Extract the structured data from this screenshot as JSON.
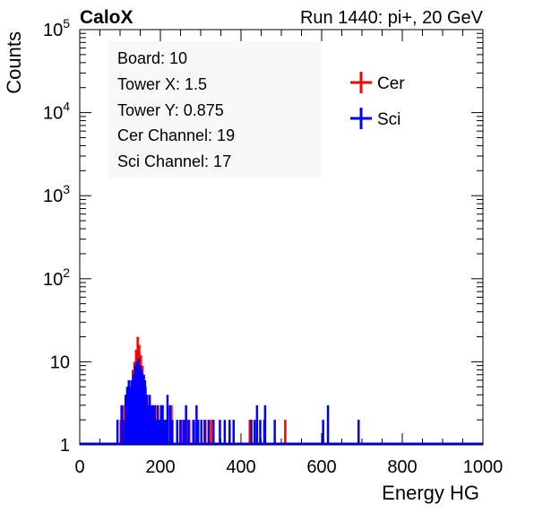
{
  "header": {
    "brand": "CaloX",
    "run_label": "Run 1440: pi+, 20 GeV"
  },
  "info_box": {
    "lines": [
      "Board: 10",
      "Tower X: 1.5",
      "Tower Y: 0.875",
      "Cer Channel: 19",
      "Sci Channel: 17"
    ]
  },
  "legend": {
    "entries": [
      {
        "name": "Cer",
        "color": "#ff0000"
      },
      {
        "name": "Sci",
        "color": "#0000ff"
      }
    ]
  },
  "chart_data": {
    "type": "histogram",
    "xlabel": "Energy HG",
    "ylabel": "Counts",
    "xlim": [
      0,
      1000
    ],
    "ylim": [
      1,
      100000
    ],
    "yscale": "log",
    "x_ticks": [
      "0",
      "200",
      "400",
      "600",
      "800",
      "1000"
    ],
    "y_ticks": [
      {
        "value": 1,
        "label": "1"
      },
      {
        "value": 10,
        "label": "10"
      },
      {
        "value": 100,
        "label": "10",
        "exp": "2"
      },
      {
        "value": 1000,
        "label": "10",
        "exp": "3"
      },
      {
        "value": 10000,
        "label": "10",
        "exp": "4"
      },
      {
        "value": 100000,
        "label": "10",
        "exp": "5"
      }
    ],
    "grid": false,
    "legend_position": "top-right",
    "bin_width": 2,
    "series": [
      {
        "name": "Cer",
        "color": "#ff0000",
        "bins": [
          {
            "x": 100,
            "y": 2
          },
          {
            "x": 106,
            "y": 3
          },
          {
            "x": 110,
            "y": 2
          },
          {
            "x": 114,
            "y": 4
          },
          {
            "x": 118,
            "y": 3
          },
          {
            "x": 122,
            "y": 5
          },
          {
            "x": 126,
            "y": 6
          },
          {
            "x": 130,
            "y": 8
          },
          {
            "x": 134,
            "y": 10
          },
          {
            "x": 138,
            "y": 14
          },
          {
            "x": 142,
            "y": 20
          },
          {
            "x": 146,
            "y": 16
          },
          {
            "x": 150,
            "y": 12
          },
          {
            "x": 154,
            "y": 9
          },
          {
            "x": 158,
            "y": 7
          },
          {
            "x": 162,
            "y": 5
          },
          {
            "x": 166,
            "y": 4
          },
          {
            "x": 170,
            "y": 3
          },
          {
            "x": 178,
            "y": 2
          },
          {
            "x": 186,
            "y": 3
          },
          {
            "x": 194,
            "y": 2
          },
          {
            "x": 200,
            "y": 3
          },
          {
            "x": 210,
            "y": 2
          },
          {
            "x": 226,
            "y": 3
          },
          {
            "x": 250,
            "y": 2
          },
          {
            "x": 258,
            "y": 2
          },
          {
            "x": 270,
            "y": 2
          },
          {
            "x": 282,
            "y": 2
          },
          {
            "x": 292,
            "y": 2
          },
          {
            "x": 300,
            "y": 2
          },
          {
            "x": 310,
            "y": 2
          },
          {
            "x": 324,
            "y": 2
          },
          {
            "x": 420,
            "y": 2
          },
          {
            "x": 508,
            "y": 2
          }
        ]
      },
      {
        "name": "Sci",
        "color": "#0000ff",
        "bins": [
          {
            "x": 92,
            "y": 2
          },
          {
            "x": 102,
            "y": 3
          },
          {
            "x": 106,
            "y": 2
          },
          {
            "x": 112,
            "y": 4
          },
          {
            "x": 116,
            "y": 5
          },
          {
            "x": 120,
            "y": 6
          },
          {
            "x": 124,
            "y": 5
          },
          {
            "x": 128,
            "y": 6
          },
          {
            "x": 132,
            "y": 7
          },
          {
            "x": 136,
            "y": 9
          },
          {
            "x": 140,
            "y": 10
          },
          {
            "x": 144,
            "y": 11
          },
          {
            "x": 148,
            "y": 9
          },
          {
            "x": 152,
            "y": 8
          },
          {
            "x": 156,
            "y": 7
          },
          {
            "x": 160,
            "y": 6
          },
          {
            "x": 164,
            "y": 4
          },
          {
            "x": 168,
            "y": 3
          },
          {
            "x": 172,
            "y": 4
          },
          {
            "x": 176,
            "y": 3
          },
          {
            "x": 180,
            "y": 3
          },
          {
            "x": 184,
            "y": 3
          },
          {
            "x": 188,
            "y": 2
          },
          {
            "x": 192,
            "y": 3
          },
          {
            "x": 196,
            "y": 2
          },
          {
            "x": 200,
            "y": 3
          },
          {
            "x": 204,
            "y": 3
          },
          {
            "x": 208,
            "y": 2
          },
          {
            "x": 212,
            "y": 2
          },
          {
            "x": 216,
            "y": 4
          },
          {
            "x": 222,
            "y": 3
          },
          {
            "x": 228,
            "y": 2
          },
          {
            "x": 240,
            "y": 2
          },
          {
            "x": 248,
            "y": 2
          },
          {
            "x": 256,
            "y": 2
          },
          {
            "x": 262,
            "y": 3
          },
          {
            "x": 268,
            "y": 2
          },
          {
            "x": 280,
            "y": 2
          },
          {
            "x": 288,
            "y": 3
          },
          {
            "x": 292,
            "y": 2
          },
          {
            "x": 300,
            "y": 2
          },
          {
            "x": 308,
            "y": 2
          },
          {
            "x": 318,
            "y": 2
          },
          {
            "x": 330,
            "y": 2
          },
          {
            "x": 346,
            "y": 2
          },
          {
            "x": 358,
            "y": 2
          },
          {
            "x": 370,
            "y": 2
          },
          {
            "x": 380,
            "y": 2
          },
          {
            "x": 424,
            "y": 2
          },
          {
            "x": 432,
            "y": 2
          },
          {
            "x": 438,
            "y": 3
          },
          {
            "x": 446,
            "y": 2
          },
          {
            "x": 456,
            "y": 2
          },
          {
            "x": 458,
            "y": 3
          },
          {
            "x": 482,
            "y": 2
          },
          {
            "x": 602,
            "y": 2
          },
          {
            "x": 614,
            "y": 3
          },
          {
            "x": 690,
            "y": 2
          }
        ]
      }
    ]
  }
}
